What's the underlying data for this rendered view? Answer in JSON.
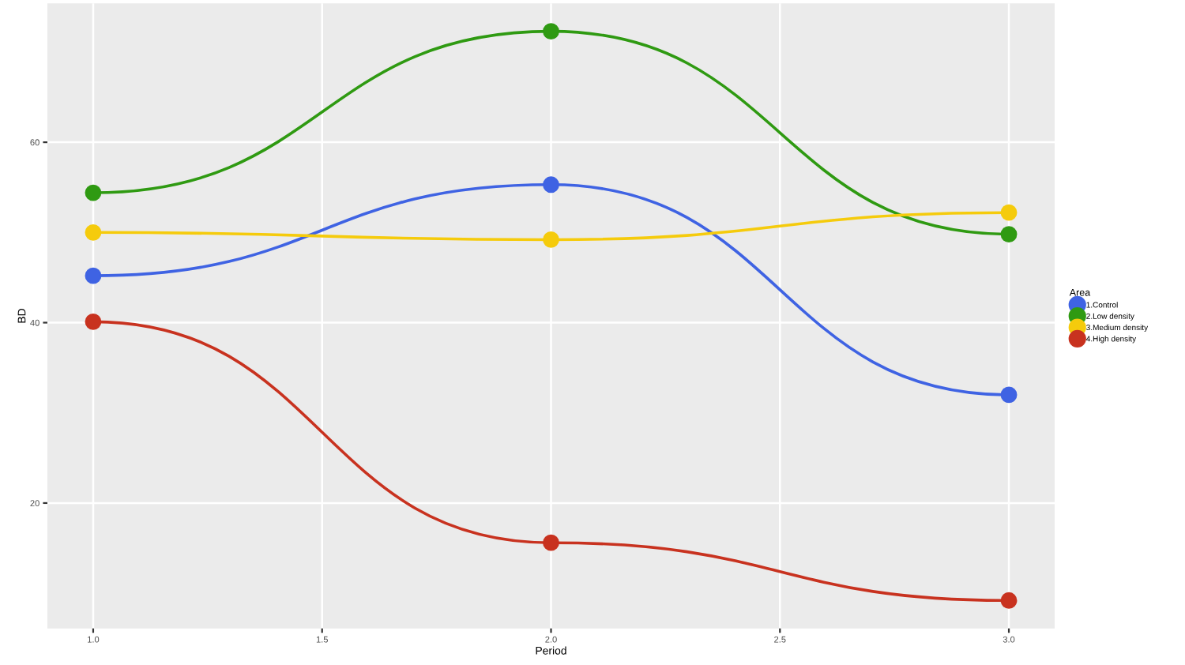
{
  "chart_data": {
    "type": "line",
    "xlabel": "Period",
    "ylabel": "BD",
    "legend_title": "Area",
    "x": [
      1,
      2,
      3
    ],
    "series": [
      {
        "name": "1.Control",
        "color": "#3f63e3",
        "values": [
          45.2,
          55.3,
          32.0
        ]
      },
      {
        "name": "2.Low density",
        "color": "#2f9a12",
        "values": [
          54.4,
          72.3,
          49.8
        ]
      },
      {
        "name": "3.Medium density",
        "color": "#f5cb0c",
        "values": [
          50.0,
          49.2,
          52.2
        ]
      },
      {
        "name": "4.High density",
        "color": "#c8321f",
        "values": [
          40.1,
          15.6,
          9.2
        ]
      }
    ],
    "xlim": [
      0.9,
      3.1
    ],
    "ylim": [
      6.1,
      75.4
    ],
    "xticks": [
      {
        "value": 1,
        "label": "1.0"
      },
      {
        "value": 1.5,
        "label": "1.5"
      },
      {
        "value": 2,
        "label": "2.0"
      },
      {
        "value": 2.5,
        "label": "2.5"
      },
      {
        "value": 3,
        "label": "3.0"
      }
    ],
    "yticks": [
      20,
      40,
      60
    ],
    "grid": true,
    "legend": "right",
    "marker": "circle",
    "line_style": "solid"
  }
}
